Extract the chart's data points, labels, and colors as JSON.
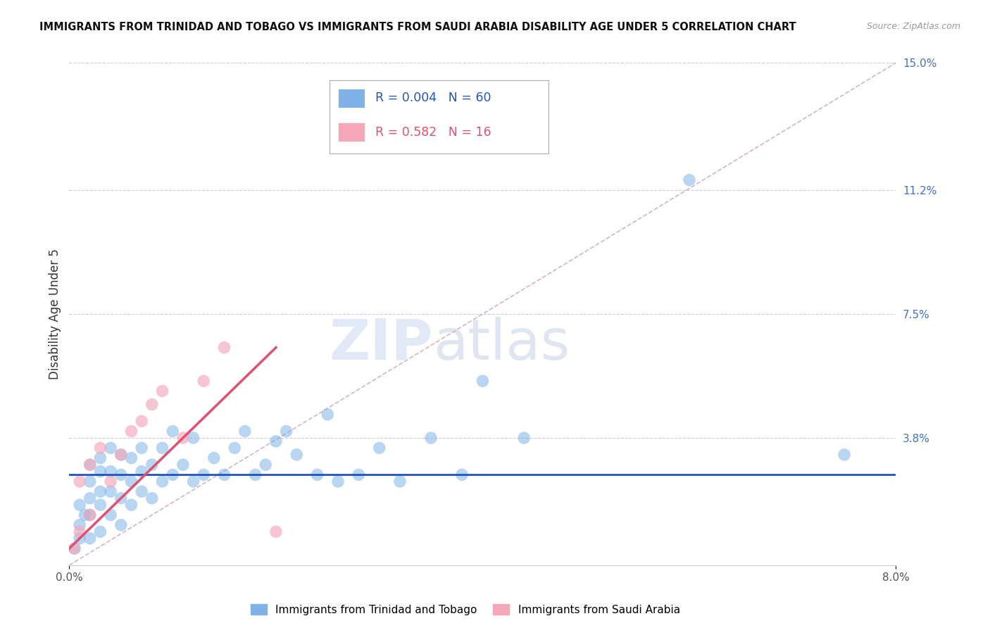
{
  "title": "IMMIGRANTS FROM TRINIDAD AND TOBAGO VS IMMIGRANTS FROM SAUDI ARABIA DISABILITY AGE UNDER 5 CORRELATION CHART",
  "source": "Source: ZipAtlas.com",
  "ylabel": "Disability Age Under 5",
  "xlim": [
    0.0,
    0.08
  ],
  "ylim": [
    0.0,
    0.15
  ],
  "ytick_right_values": [
    0.0,
    0.038,
    0.075,
    0.112,
    0.15
  ],
  "ytick_right_labels": [
    "",
    "3.8%",
    "7.5%",
    "11.2%",
    "15.0%"
  ],
  "r_tt": 0.004,
  "n_tt": 60,
  "r_sa": 0.582,
  "n_sa": 16,
  "color_tt": "#7FB3E8",
  "color_sa": "#F4A7B9",
  "color_line_tt": "#2255BB",
  "color_line_sa": "#E05070",
  "color_diag": "#D0A0A8",
  "color_grid": "#CCCCCC",
  "hline_tt_y": 0.027,
  "tt_x": [
    0.0005,
    0.001,
    0.001,
    0.001,
    0.0015,
    0.002,
    0.002,
    0.002,
    0.002,
    0.002,
    0.003,
    0.003,
    0.003,
    0.003,
    0.003,
    0.004,
    0.004,
    0.004,
    0.004,
    0.005,
    0.005,
    0.005,
    0.005,
    0.006,
    0.006,
    0.006,
    0.007,
    0.007,
    0.007,
    0.008,
    0.008,
    0.009,
    0.009,
    0.01,
    0.01,
    0.011,
    0.012,
    0.012,
    0.013,
    0.014,
    0.015,
    0.016,
    0.017,
    0.018,
    0.019,
    0.02,
    0.021,
    0.022,
    0.024,
    0.025,
    0.026,
    0.028,
    0.03,
    0.032,
    0.035,
    0.038,
    0.04,
    0.044,
    0.06,
    0.075
  ],
  "tt_y": [
    0.005,
    0.008,
    0.012,
    0.018,
    0.015,
    0.008,
    0.015,
    0.02,
    0.025,
    0.03,
    0.01,
    0.018,
    0.022,
    0.028,
    0.032,
    0.015,
    0.022,
    0.028,
    0.035,
    0.012,
    0.02,
    0.027,
    0.033,
    0.018,
    0.025,
    0.032,
    0.022,
    0.028,
    0.035,
    0.02,
    0.03,
    0.025,
    0.035,
    0.027,
    0.04,
    0.03,
    0.025,
    0.038,
    0.027,
    0.032,
    0.027,
    0.035,
    0.04,
    0.027,
    0.03,
    0.037,
    0.04,
    0.033,
    0.027,
    0.045,
    0.025,
    0.027,
    0.035,
    0.025,
    0.038,
    0.027,
    0.055,
    0.038,
    0.115,
    0.033
  ],
  "sa_x": [
    0.0005,
    0.001,
    0.001,
    0.002,
    0.002,
    0.003,
    0.004,
    0.005,
    0.006,
    0.007,
    0.008,
    0.009,
    0.011,
    0.013,
    0.015,
    0.02
  ],
  "sa_y": [
    0.005,
    0.01,
    0.025,
    0.015,
    0.03,
    0.035,
    0.025,
    0.033,
    0.04,
    0.043,
    0.048,
    0.052,
    0.038,
    0.055,
    0.065,
    0.01
  ],
  "sa_line_x": [
    0.0,
    0.02
  ],
  "sa_line_y": [
    0.005,
    0.065
  ],
  "watermark_zip": "ZIP",
  "watermark_atlas": "atlas",
  "legend_tt": "Immigrants from Trinidad and Tobago",
  "legend_sa": "Immigrants from Saudi Arabia"
}
